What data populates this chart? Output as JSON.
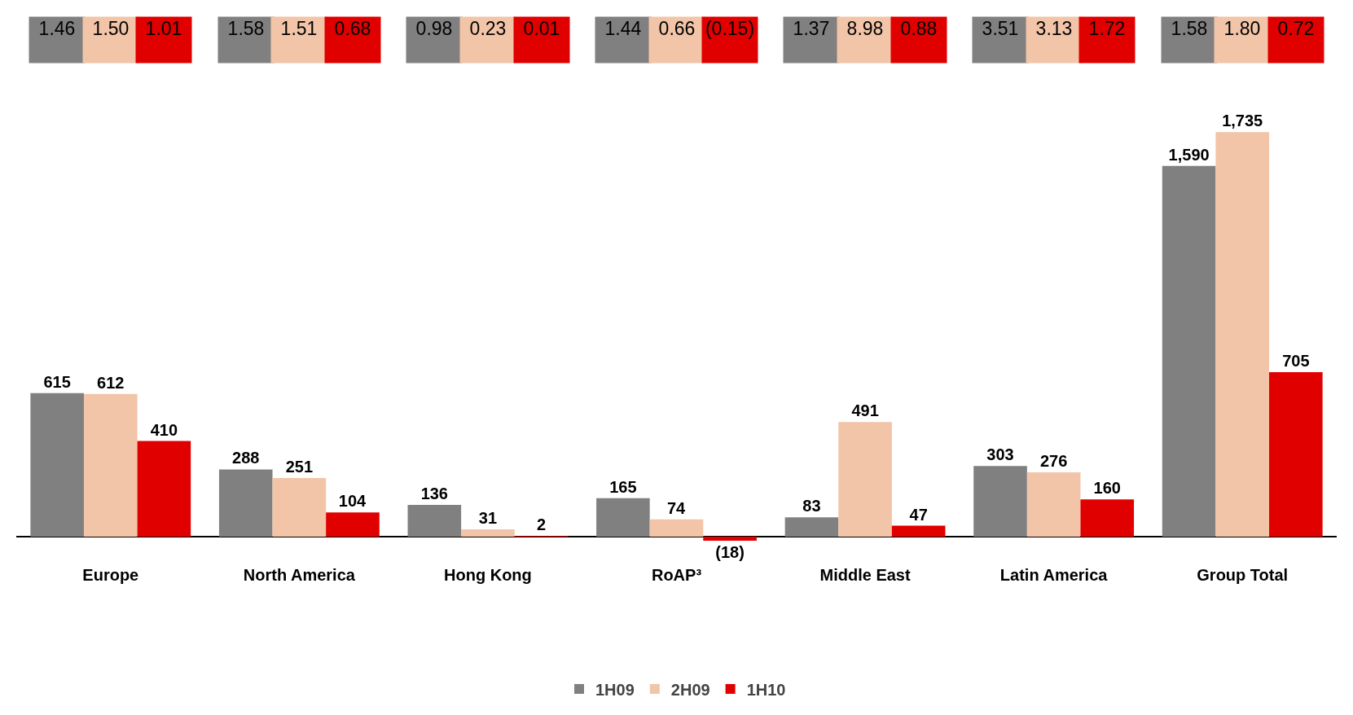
{
  "chart_data": {
    "type": "bar",
    "categories": [
      "Europe",
      "North America",
      "Hong Kong",
      "RoAP³",
      "Middle East",
      "Latin America",
      "Group Total"
    ],
    "series": [
      {
        "name": "1H09",
        "color": "#808080",
        "values": [
          615,
          288,
          136,
          165,
          83,
          303,
          1590
        ],
        "value_labels": [
          "615",
          "288",
          "136",
          "165",
          "83",
          "303",
          "1,590"
        ]
      },
      {
        "name": "2H09",
        "color": "#f2c4a8",
        "values": [
          612,
          251,
          31,
          74,
          491,
          276,
          1735
        ],
        "value_labels": [
          "612",
          "251",
          "31",
          "74",
          "491",
          "276",
          "1,735"
        ]
      },
      {
        "name": "1H10",
        "color": "#e00000",
        "values": [
          410,
          104,
          2,
          -18,
          47,
          160,
          705
        ],
        "value_labels": [
          "410",
          "104",
          "2",
          "(18)",
          "47",
          "160",
          "705"
        ]
      }
    ],
    "annotations": [
      "1.46",
      "1.50",
      "1.01",
      "1.58",
      "1.51",
      "0.68",
      "0.98",
      "0.23",
      "0.01",
      "1.44",
      "0.66",
      "(0.15)",
      "1.37",
      "8.98",
      "0.88",
      "3.51",
      "3.13",
      "1.72",
      "1.58",
      "1.80",
      "0.72"
    ],
    "legend": "bottom",
    "grid": false
  }
}
